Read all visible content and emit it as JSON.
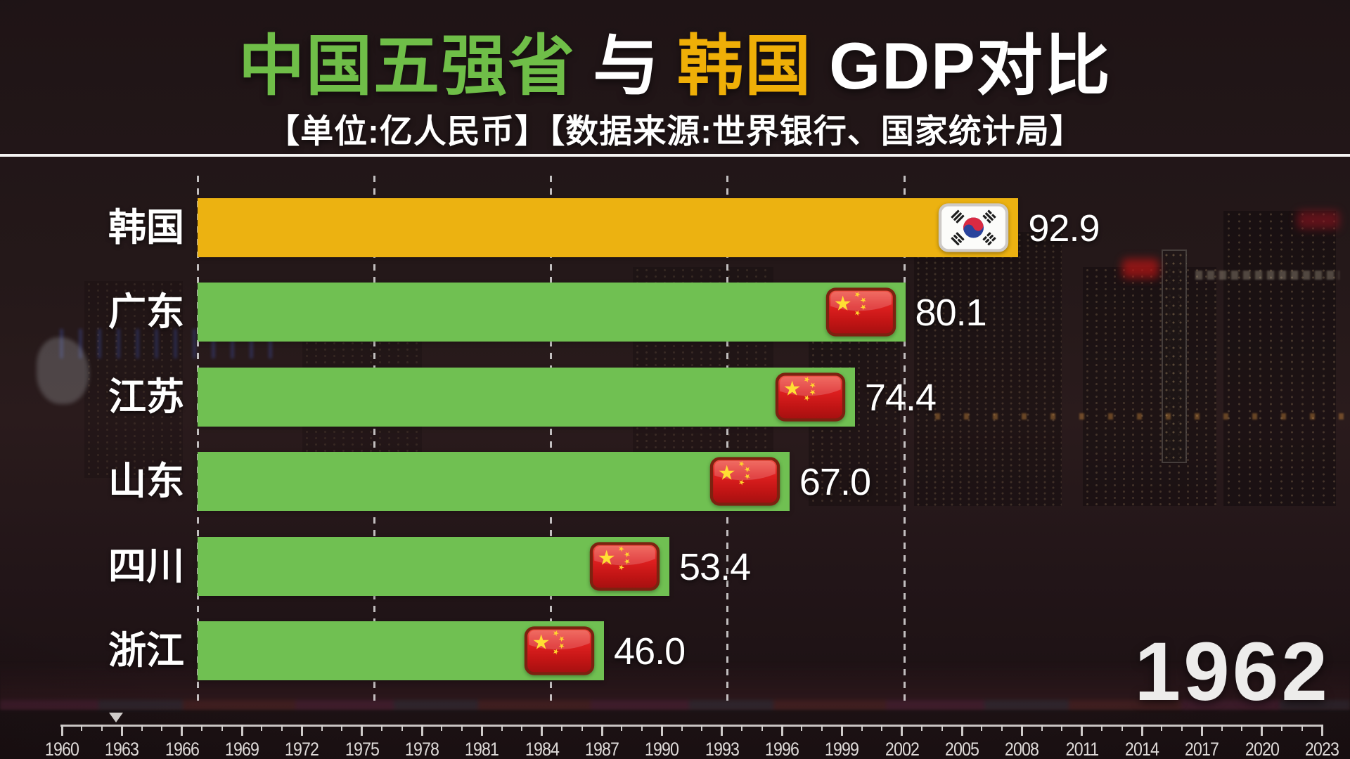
{
  "header": {
    "title_green": "中国五强省",
    "title_mid": "与",
    "title_gold": "韩国",
    "title_end": "GDP对比",
    "subtitle": "【单位:亿人民币】【数据来源:世界银行、国家统计局】"
  },
  "chart_data": {
    "type": "bar",
    "orientation": "horizontal",
    "title": "中国五强省 与 韩国 GDP对比",
    "unit": "亿人民币",
    "data_sources": [
      "世界银行",
      "国家统计局"
    ],
    "categories": [
      "韩国",
      "广东",
      "江苏",
      "山东",
      "四川",
      "浙江"
    ],
    "values": [
      92.9,
      80.1,
      74.4,
      67.0,
      53.4,
      46.0
    ],
    "value_labels": [
      "92.9",
      "80.1",
      "74.4",
      "67.0",
      "53.4",
      "46.0"
    ],
    "flags": [
      "south-korea",
      "china",
      "china",
      "china",
      "china",
      "china"
    ],
    "bar_colors": [
      "#ecb211",
      "#70c052",
      "#70c052",
      "#70c052",
      "#70c052",
      "#70c052"
    ],
    "value_axis": {
      "gridline_values": [
        0,
        20,
        40,
        60,
        80
      ],
      "gridline_interval": 20
    },
    "timeline_axis": {
      "start_year": 1960,
      "end_year": 2023,
      "label_interval": 3,
      "minor_interval": 1,
      "tick_labels": [
        "1960",
        "1963",
        "1966",
        "1969",
        "1972",
        "1975",
        "1978",
        "1981",
        "1984",
        "1987",
        "1990",
        "1993",
        "1996",
        "1999",
        "2002",
        "2005",
        "2008",
        "2011",
        "2014",
        "2017",
        "2020",
        "2023"
      ],
      "current_position": 1962.7
    },
    "current_year": "1962"
  },
  "colors": {
    "title_green": "#6fbe48",
    "title_gold": "#efaf07",
    "bar_green": "#70c052",
    "bar_gold": "#ecb211",
    "text_white": "#ffffff"
  }
}
